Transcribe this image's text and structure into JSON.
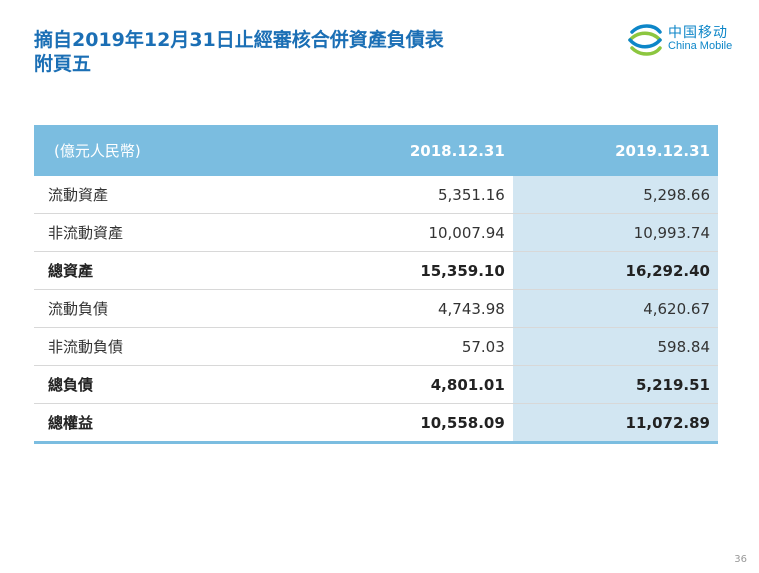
{
  "title": {
    "line1": "摘自2019年12月31日止經審核合併資產負債表",
    "line2": "附頁五"
  },
  "logo": {
    "cn": "中国移动",
    "en": "China Mobile"
  },
  "table": {
    "headers": [
      "(億元人民幣)",
      "2018.12.31",
      "2019.12.31"
    ],
    "rows": [
      {
        "label": "流動資產",
        "v2018": "5,351.16",
        "v2019": "5,298.66"
      },
      {
        "label": "非流動資產",
        "v2018": "10,007.94",
        "v2019": "10,993.74"
      },
      {
        "label": "總資產",
        "v2018": "15,359.10",
        "v2019": "16,292.40"
      },
      {
        "label": "流動負債",
        "v2018": "4,743.98",
        "v2019": "4,620.67"
      },
      {
        "label": "非流動負債",
        "v2018": "57.03",
        "v2019": "598.84"
      },
      {
        "label": "總負債",
        "v2018": "4,801.01",
        "v2019": "5,219.51"
      },
      {
        "label": "總權益",
        "v2018": "10,558.09",
        "v2019": "11,072.89"
      }
    ]
  },
  "page_number": "36",
  "colors": {
    "title": "#1b6fb5",
    "header_bg": "#7bbde0",
    "highlight_col": "#d2e6f2",
    "logo": "#0d86c8"
  }
}
